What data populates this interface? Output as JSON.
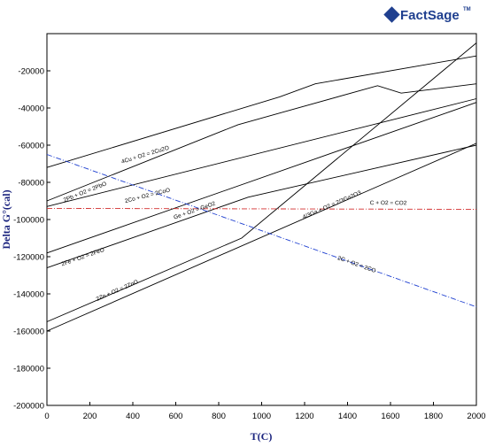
{
  "logo": {
    "brand": "FactSage",
    "mark": "TM"
  },
  "chart_data": {
    "type": "line",
    "title": "",
    "xlabel": "T(C)",
    "ylabel": "Delta G°(cal)",
    "xlim": [
      0,
      2000
    ],
    "ylim": [
      -200000,
      0
    ],
    "xticks": [
      0,
      200,
      400,
      600,
      800,
      1000,
      1200,
      1400,
      1600,
      1800,
      2000
    ],
    "yticks": [
      -200000,
      -180000,
      -160000,
      -140000,
      -120000,
      -100000,
      -80000,
      -60000,
      -40000,
      -20000
    ],
    "grid": false,
    "series": [
      {
        "name": "4Cu + O2 = 2Cu2O",
        "color": "#000000",
        "dash": "",
        "x": [
          0,
          1084,
          1250,
          2000
        ],
        "y": [
          -72000,
          -34000,
          -27000,
          -12000
        ],
        "label_at": [
          460,
          -66000
        ]
      },
      {
        "name": "2Pb + O2 = 2PbO",
        "color": "#000000",
        "dash": "",
        "x": [
          0,
          890,
          1540,
          1650,
          2000
        ],
        "y": [
          -90000,
          -49000,
          -28000,
          -32000,
          -27000
        ],
        "label_at": [
          180,
          -86000
        ]
      },
      {
        "name": "2Co + O2 = 2CoO",
        "color": "#000000",
        "dash": "",
        "x": [
          0,
          2000
        ],
        "y": [
          -93000,
          -35000
        ],
        "label_at": [
          470,
          -88000
        ]
      },
      {
        "name": "Ge + O2 = GeO2",
        "color": "#000000",
        "dash": "",
        "x": [
          0,
          937,
          2000
        ],
        "y": [
          -126000,
          -88000,
          -60000
        ],
        "label_at": [
          690,
          -96000
        ]
      },
      {
        "name": "2Fe + O2 = 2FeO",
        "color": "#000000",
        "dash": "",
        "x": [
          0,
          2000
        ],
        "y": [
          -118000,
          -37000
        ],
        "label_at": [
          170,
          -121000
        ]
      },
      {
        "name": "4/3Ga + O2 = 2/3Ga2O3",
        "color": "#000000",
        "dash": "",
        "x": [
          0,
          2000
        ],
        "y": [
          -160000,
          -59000
        ],
        "label_at": [
          1330,
          -93000
        ]
      },
      {
        "name": "2Zn + O2 = 2ZnO",
        "color": "#000000",
        "dash": "",
        "x": [
          0,
          907,
          2000
        ],
        "y": [
          -155000,
          -110000,
          -5000
        ],
        "label_at": [
          330,
          -139000
        ]
      },
      {
        "name": "C + O2 = CO2",
        "color": "#d32f2f",
        "dash": "6 2 1 2",
        "x": [
          0,
          2000
        ],
        "y": [
          -94000,
          -94500
        ],
        "label_at": [
          1590,
          -92000
        ]
      },
      {
        "name": "2C + O2 = 2CO",
        "color": "#1e3fd0",
        "dash": "6 2 1 2",
        "x": [
          0,
          2000
        ],
        "y": [
          -65000,
          -147000
        ],
        "label_at": [
          1440,
          -125000
        ]
      }
    ]
  }
}
